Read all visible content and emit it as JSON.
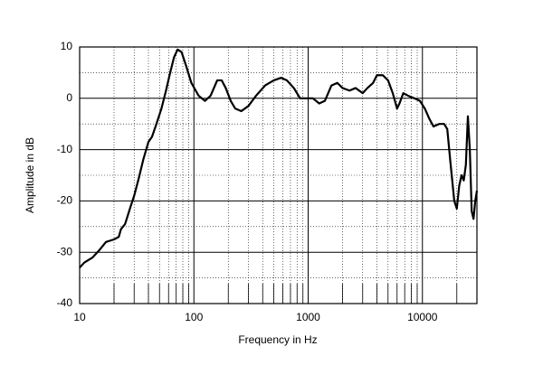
{
  "chart_data": {
    "type": "line",
    "x_label": "Frequency in Hz",
    "y_label": "Amplitude in dB",
    "x_scale": "log",
    "xlim": [
      10,
      30000
    ],
    "ylim": [
      -40,
      10
    ],
    "xticks": [
      10,
      100,
      1000,
      10000
    ],
    "yticks": [
      10,
      0,
      -10,
      -20,
      -30,
      -40
    ],
    "xminorticks": [
      20,
      30,
      40,
      50,
      60,
      70,
      80,
      90,
      200,
      300,
      400,
      500,
      600,
      700,
      800,
      900,
      2000,
      3000,
      4000,
      5000,
      6000,
      7000,
      8000,
      9000,
      20000
    ],
    "yminorticks": [
      5,
      -5,
      -15,
      -25,
      -35
    ],
    "grid": true,
    "series": [
      {
        "color": "#000000",
        "x": [
          10,
          11,
          13,
          15,
          17,
          20,
          22,
          23,
          25,
          28,
          30,
          33,
          36,
          40,
          43,
          47,
          52,
          57,
          62,
          67,
          72,
          78,
          85,
          95,
          110,
          125,
          140,
          160,
          175,
          190,
          210,
          230,
          260,
          300,
          350,
          420,
          500,
          580,
          650,
          750,
          850,
          1000,
          1100,
          1250,
          1400,
          1600,
          1800,
          2000,
          2300,
          2600,
          3000,
          3300,
          3700,
          4000,
          4500,
          5000,
          5500,
          6000,
          6300,
          6800,
          7500,
          8500,
          9500,
          10500,
          11500,
          12500,
          14000,
          15500,
          16500,
          17500,
          19000,
          20000,
          21000,
          22000,
          23000,
          24000,
          25000,
          26000,
          27000,
          28000,
          29000,
          30000
        ],
        "values": [
          -33,
          -32,
          -31,
          -29.5,
          -28,
          -27.5,
          -27,
          -25.5,
          -24.5,
          -21,
          -19,
          -15.5,
          -12,
          -8.5,
          -7.5,
          -5,
          -2,
          1.5,
          5,
          8,
          9.5,
          9,
          6.5,
          3,
          0.5,
          -0.5,
          0.5,
          3.5,
          3.5,
          2,
          -0.5,
          -2,
          -2.5,
          -1.5,
          0.5,
          2.5,
          3.5,
          4,
          3.5,
          2,
          0,
          0,
          0,
          -1,
          -0.5,
          2.5,
          3,
          2,
          1.5,
          2,
          1,
          2,
          3,
          4.5,
          4.5,
          3.5,
          1,
          -2,
          -1,
          1,
          0.5,
          0,
          -0.5,
          -2,
          -4,
          -5.5,
          -5,
          -5,
          -6,
          -12,
          -20,
          -21.5,
          -17,
          -15,
          -16,
          -13,
          -3.5,
          -10,
          -22,
          -23.5,
          -20,
          -18
        ]
      }
    ]
  }
}
